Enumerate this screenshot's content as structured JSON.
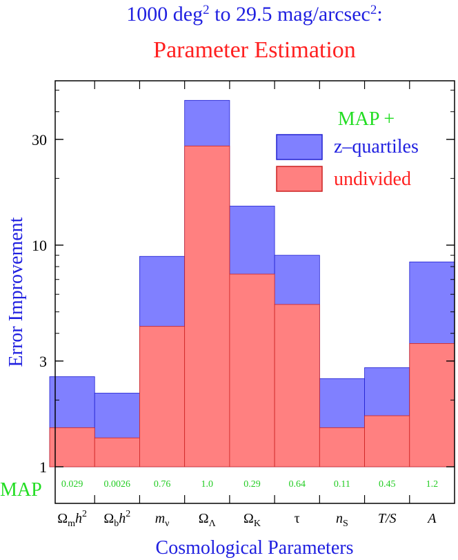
{
  "chart_data": {
    "type": "bar",
    "title_line1": {
      "base": "1000 deg",
      "sup1": "2",
      "mid": " to 29.5 mag/arcsec",
      "sup2": "2",
      "tail": ":"
    },
    "title_line2": "Parameter Estimation",
    "xlabel": "Cosmological Parameters",
    "ylabel": "Error Improvement",
    "yscale": "log",
    "ylim": [
      1,
      50
    ],
    "yticks": [
      1,
      3,
      10,
      30
    ],
    "ytick_labels": [
      "1",
      "3",
      "10",
      "30"
    ],
    "categories": [
      {
        "main": "Ω",
        "sub": "m",
        "tail": "h",
        "sup": "2"
      },
      {
        "main": "Ω",
        "sub": "b",
        "tail": "h",
        "sup": "2"
      },
      {
        "main": "m",
        "sub": "ν",
        "tail": "",
        "sup": ""
      },
      {
        "main": "Ω",
        "sub": "Λ",
        "tail": "",
        "sup": ""
      },
      {
        "main": "Ω",
        "sub": "K",
        "tail": "",
        "sup": ""
      },
      {
        "main": "τ",
        "sub": "",
        "tail": "",
        "sup": ""
      },
      {
        "main": "n",
        "sub": "S",
        "tail": "",
        "sup": ""
      },
      {
        "main": "T/S",
        "sub": "",
        "tail": "",
        "sup": ""
      },
      {
        "main": "A",
        "sub": "",
        "tail": "",
        "sup": ""
      }
    ],
    "series": [
      {
        "name": "z–quartiles",
        "color": "#8080ff",
        "edge": "#2020d0",
        "values": [
          2.55,
          2.15,
          8.9,
          45,
          15,
          9.0,
          2.5,
          2.8,
          8.4
        ]
      },
      {
        "name": "undivided",
        "color": "#ff8080",
        "edge": "#cc2020",
        "values": [
          1.5,
          1.35,
          4.3,
          28,
          7.4,
          5.4,
          1.5,
          1.7,
          3.6
        ]
      }
    ],
    "legend_title": "MAP +",
    "legend_position": "top-right",
    "map_row_label": "MAP",
    "map_values": [
      "0.029",
      "0.0026",
      "0.76",
      "1.0",
      "0.29",
      "0.64",
      "0.11",
      "0.45",
      "1.2"
    ],
    "colors": {
      "title_blue": "#2020e0",
      "title_red": "#ff2020",
      "green": "#22dd22"
    }
  }
}
